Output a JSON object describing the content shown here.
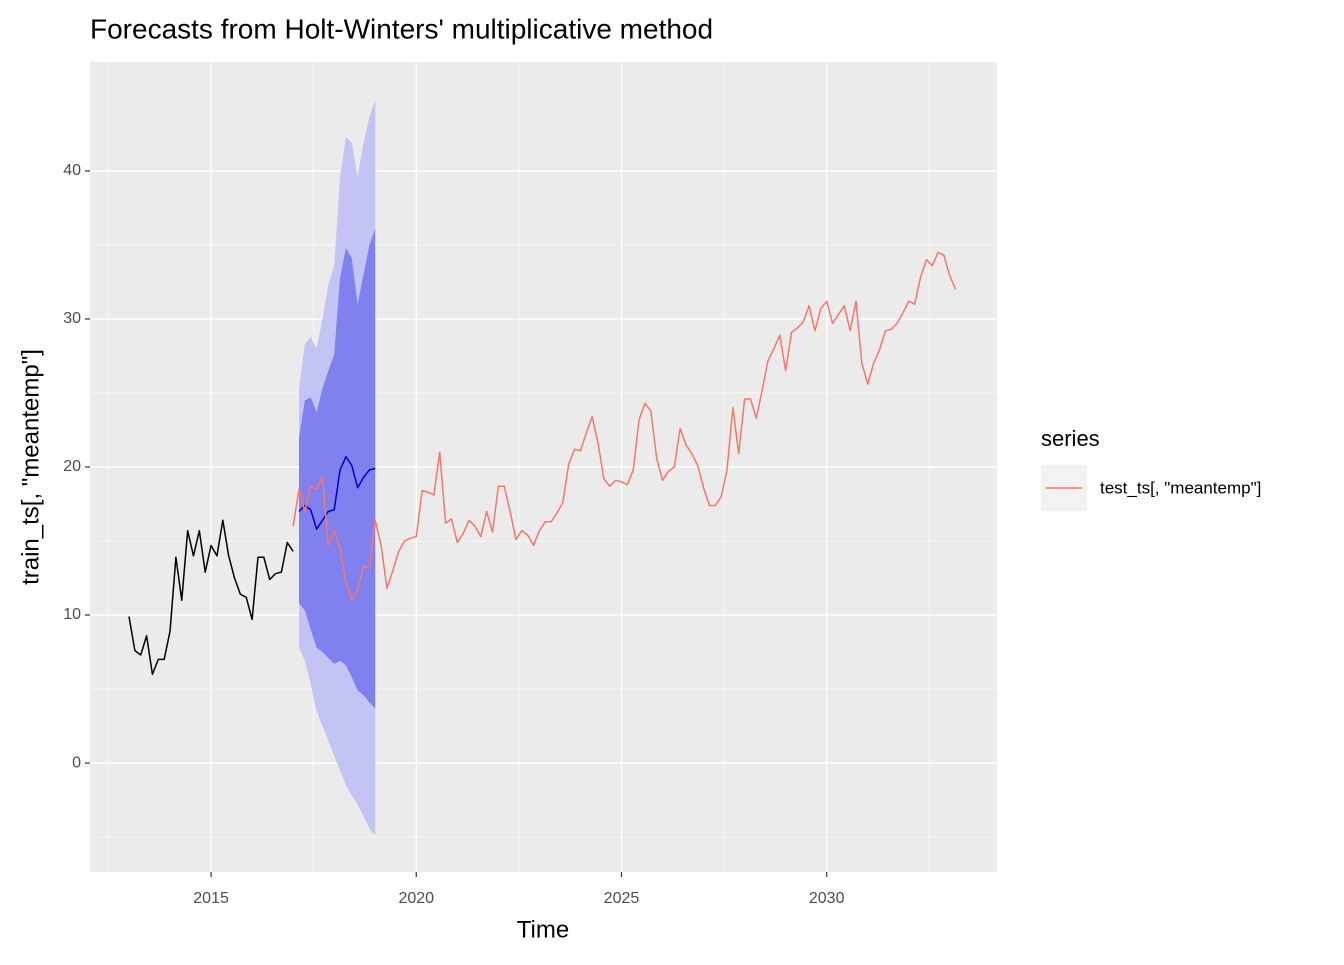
{
  "chart_data": {
    "type": "line",
    "title": "Forecasts from Holt-Winters' multiplicative method",
    "x_label": "Time",
    "y_label": "train_ts[, \"meantemp\"]",
    "legend_title": "series",
    "xlim": [
      2012.05,
      2034.15
    ],
    "ylim": [
      -7.36,
      47.36
    ],
    "xticks": [
      2015,
      2020,
      2025,
      2030
    ],
    "yticks": [
      0,
      10,
      20,
      30,
      40
    ],
    "x_minor_ticks": [
      2012.5,
      2017.5,
      2022.5,
      2027.5,
      2032.5
    ],
    "y_minor_ticks": [
      -5,
      5,
      15,
      25,
      35
    ],
    "grid": true,
    "train": {
      "color": "#000000",
      "x": [
        2013,
        2013.143,
        2013.286,
        2013.429,
        2013.571,
        2013.714,
        2013.857,
        2014,
        2014.143,
        2014.286,
        2014.429,
        2014.571,
        2014.714,
        2014.857,
        2015,
        2015.143,
        2015.286,
        2015.429,
        2015.571,
        2015.714,
        2015.857,
        2016,
        2016.143,
        2016.286,
        2016.429,
        2016.571,
        2016.714,
        2016.857,
        2017
      ],
      "values": [
        9.9,
        7.6,
        7.3,
        8.6,
        6.0,
        7.0,
        7.0,
        8.9,
        13.9,
        11.0,
        15.7,
        14.0,
        15.7,
        12.9,
        14.7,
        14.0,
        16.4,
        14.0,
        12.5,
        11.4,
        11.2,
        9.7,
        13.9,
        13.9,
        12.4,
        12.8,
        12.9,
        14.9,
        14.3
      ]
    },
    "forecast": {
      "color": "#0000cc",
      "x": [
        2017.143,
        2017.286,
        2017.429,
        2017.571,
        2017.714,
        2017.857,
        2018,
        2018.143,
        2018.286,
        2018.429,
        2018.571,
        2018.714,
        2018.857,
        2019
      ],
      "values": [
        17.0,
        17.4,
        17.1,
        15.8,
        16.4,
        17.0,
        17.1,
        19.8,
        20.7,
        20.1,
        18.6,
        19.3,
        19.8,
        19.9
      ],
      "intervals": [
        {
          "color": "#c4c4f4",
          "lower": [
            7.8,
            6.9,
            5.3,
            3.5,
            2.5,
            1.5,
            0.5,
            -0.5,
            -1.5,
            -2.2,
            -2.8,
            -3.6,
            -4.4,
            -4.9
          ],
          "upper": [
            25.3,
            28.3,
            28.8,
            28.0,
            30.0,
            32.3,
            33.6,
            39.6,
            42.3,
            41.9,
            39.6,
            41.9,
            43.6,
            44.8
          ]
        },
        {
          "color": "#8080ee",
          "lower": [
            10.8,
            10.3,
            9.0,
            7.8,
            7.5,
            7.1,
            6.7,
            6.9,
            6.6,
            5.8,
            4.9,
            4.6,
            4.1,
            3.7
          ],
          "upper": [
            22.0,
            24.5,
            24.7,
            23.7,
            25.3,
            26.5,
            27.6,
            32.8,
            34.8,
            34.1,
            31.0,
            33.0,
            35.0,
            36.1
          ]
        }
      ]
    },
    "series": [
      {
        "name": "test_ts[, \"meantemp\"]",
        "color": "#f8766d",
        "x": [
          2017,
          2017.143,
          2017.286,
          2017.429,
          2017.571,
          2017.714,
          2017.857,
          2018,
          2018.143,
          2018.286,
          2018.429,
          2018.571,
          2018.714,
          2018.857,
          2019,
          2019.143,
          2019.286,
          2019.429,
          2019.571,
          2019.714,
          2019.857,
          2020,
          2020.143,
          2020.286,
          2020.429,
          2020.571,
          2020.714,
          2020.857,
          2021,
          2021.143,
          2021.286,
          2021.429,
          2021.571,
          2021.714,
          2021.857,
          2022,
          2022.143,
          2022.286,
          2022.429,
          2022.571,
          2022.714,
          2022.857,
          2023,
          2023.143,
          2023.286,
          2023.429,
          2023.571,
          2023.714,
          2023.857,
          2024,
          2024.143,
          2024.286,
          2024.429,
          2024.571,
          2024.714,
          2024.857,
          2025,
          2025.143,
          2025.286,
          2025.429,
          2025.571,
          2025.714,
          2025.857,
          2026,
          2026.143,
          2026.286,
          2026.429,
          2026.571,
          2026.714,
          2026.857,
          2027,
          2027.143,
          2027.286,
          2027.429,
          2027.571,
          2027.714,
          2027.857,
          2028,
          2028.143,
          2028.286,
          2028.429,
          2028.571,
          2028.714,
          2028.857,
          2029,
          2029.143,
          2029.286,
          2029.429,
          2029.571,
          2029.714,
          2029.857,
          2030,
          2030.143,
          2030.286,
          2030.429,
          2030.571,
          2030.714,
          2030.857,
          2031,
          2031.143,
          2031.286,
          2031.429,
          2031.571,
          2031.714,
          2031.857,
          2032,
          2032.143,
          2032.286,
          2032.429,
          2032.571,
          2032.714,
          2032.857,
          2033,
          2033.143
        ],
        "values": [
          16.0,
          18.5,
          17.0,
          18.7,
          18.5,
          19.3,
          14.7,
          15.7,
          14.5,
          12.2,
          11.0,
          11.7,
          13.3,
          13.2,
          16.4,
          14.7,
          11.8,
          13.0,
          14.3,
          15.0,
          15.2,
          15.3,
          18.4,
          18.3,
          18.1,
          21.0,
          16.2,
          16.5,
          14.9,
          15.5,
          16.4,
          16.0,
          15.3,
          17.0,
          15.6,
          18.7,
          18.7,
          17.0,
          15.1,
          15.7,
          15.4,
          14.7,
          15.7,
          16.3,
          16.3,
          16.9,
          17.6,
          20.2,
          21.2,
          21.1,
          22.3,
          23.4,
          21.6,
          19.2,
          18.7,
          19.1,
          19.0,
          18.8,
          19.8,
          23.2,
          24.3,
          23.8,
          20.6,
          19.1,
          19.7,
          20.0,
          22.6,
          21.5,
          20.9,
          20.1,
          18.6,
          17.4,
          17.4,
          18.0,
          19.8,
          24.0,
          20.9,
          24.6,
          24.6,
          23.3,
          25.2,
          27.2,
          28.0,
          28.9,
          26.5,
          29.1,
          29.4,
          29.8,
          30.9,
          29.2,
          30.7,
          31.2,
          29.7,
          30.3,
          30.9,
          29.2,
          31.2,
          27.0,
          25.6,
          27.0,
          27.9,
          29.2,
          29.3,
          29.7,
          30.4,
          31.2,
          31.0,
          32.8,
          34.0,
          33.6,
          34.5,
          34.3,
          32.9,
          32.0
        ]
      }
    ]
  }
}
